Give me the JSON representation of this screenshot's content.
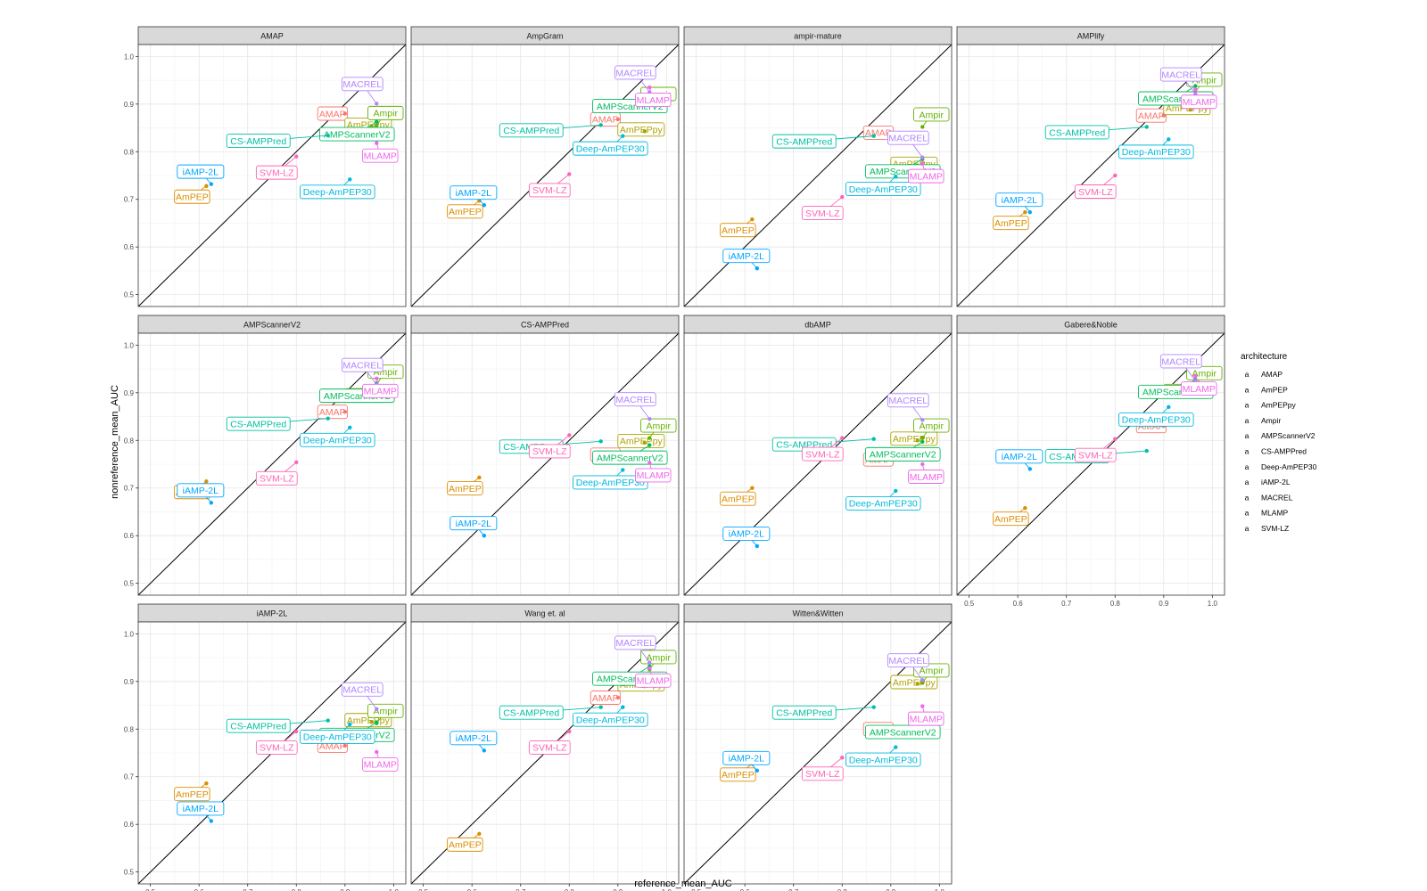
{
  "chart_data": {
    "type": "scatter",
    "xlabel": "reference_mean_AUC",
    "ylabel": "nonreference_mean_AUC",
    "xlim": [
      0.5,
      1.0
    ],
    "ylim": [
      0.5,
      1.0
    ],
    "x_ticks": [
      "0.5",
      "0.6",
      "0.7",
      "0.8",
      "0.9",
      "1.0"
    ],
    "y_ticks": [
      "0.5",
      "0.6",
      "0.7",
      "0.8",
      "0.9",
      "1.0"
    ],
    "reference_line": "y = x",
    "grid": true,
    "legend": {
      "title": "architecture",
      "placement": "right",
      "glyph": "a",
      "items": [
        {
          "name": "AMAP",
          "color": "#F8766D"
        },
        {
          "name": "AmPEP",
          "color": "#DB8E00"
        },
        {
          "name": "AmPEPpy",
          "color": "#AEA200"
        },
        {
          "name": "Ampir",
          "color": "#64B200"
        },
        {
          "name": "AMPScannerV2",
          "color": "#00BD5C"
        },
        {
          "name": "CS-AMPPred",
          "color": "#00C1A7"
        },
        {
          "name": "Deep-AmPEP30",
          "color": "#00BADE"
        },
        {
          "name": "iAMP-2L",
          "color": "#00A6FF"
        },
        {
          "name": "MACREL",
          "color": "#B385FF"
        },
        {
          "name": "MLAMP",
          "color": "#EF67EB"
        },
        {
          "name": "SVM-LZ",
          "color": "#FF63B6"
        }
      ]
    },
    "panels": [
      {
        "title": "AMAP",
        "points": [
          {
            "label": "AMAP",
            "x": 0.9,
            "y": 0.88
          },
          {
            "label": "AmPEP",
            "x": 0.615,
            "y": 0.728
          },
          {
            "label": "AmPEPpy",
            "x": 0.955,
            "y": 0.853
          },
          {
            "label": "Ampir",
            "x": 0.965,
            "y": 0.855
          },
          {
            "label": "AMPScannerV2",
            "x": 0.965,
            "y": 0.863
          },
          {
            "label": "CS-AMPPred",
            "x": 0.865,
            "y": 0.834
          },
          {
            "label": "Deep-AmPEP30",
            "x": 0.91,
            "y": 0.742
          },
          {
            "label": "iAMP-2L",
            "x": 0.625,
            "y": 0.732
          },
          {
            "label": "MACREL",
            "x": 0.965,
            "y": 0.901
          },
          {
            "label": "MLAMP",
            "x": 0.965,
            "y": 0.818
          },
          {
            "label": "SVM-LZ",
            "x": 0.8,
            "y": 0.79
          }
        ]
      },
      {
        "title": "AmpGram",
        "points": [
          {
            "label": "AMAP",
            "x": 0.9,
            "y": 0.868
          },
          {
            "label": "AmPEP",
            "x": 0.615,
            "y": 0.697
          },
          {
            "label": "AmPEPpy",
            "x": 0.955,
            "y": 0.843
          },
          {
            "label": "Ampir",
            "x": 0.965,
            "y": 0.895
          },
          {
            "label": "AMPScannerV2",
            "x": 0.965,
            "y": 0.922
          },
          {
            "label": "CS-AMPPred",
            "x": 0.865,
            "y": 0.856
          },
          {
            "label": "Deep-AmPEP30",
            "x": 0.91,
            "y": 0.833
          },
          {
            "label": "iAMP-2L",
            "x": 0.625,
            "y": 0.688
          },
          {
            "label": "MACREL",
            "x": 0.965,
            "y": 0.925
          },
          {
            "label": "MLAMP",
            "x": 0.965,
            "y": 0.935
          },
          {
            "label": "SVM-LZ",
            "x": 0.8,
            "y": 0.753
          }
        ]
      },
      {
        "title": "ampir-mature",
        "points": [
          {
            "label": "AMAP",
            "x": 0.9,
            "y": 0.84
          },
          {
            "label": "AmPEP",
            "x": 0.615,
            "y": 0.658
          },
          {
            "label": "AmPEPpy",
            "x": 0.955,
            "y": 0.771
          },
          {
            "label": "Ampir",
            "x": 0.965,
            "y": 0.852
          },
          {
            "label": "AMPScannerV2",
            "x": 0.965,
            "y": 0.785
          },
          {
            "label": "CS-AMPPred",
            "x": 0.865,
            "y": 0.833
          },
          {
            "label": "Deep-AmPEP30",
            "x": 0.91,
            "y": 0.748
          },
          {
            "label": "iAMP-2L",
            "x": 0.625,
            "y": 0.555
          },
          {
            "label": "MACREL",
            "x": 0.965,
            "y": 0.788
          },
          {
            "label": "MLAMP",
            "x": 0.965,
            "y": 0.775
          },
          {
            "label": "SVM-LZ",
            "x": 0.8,
            "y": 0.705
          }
        ]
      },
      {
        "title": "AMPlify",
        "points": [
          {
            "label": "AMAP",
            "x": 0.9,
            "y": 0.876
          },
          {
            "label": "AmPEP",
            "x": 0.615,
            "y": 0.673
          },
          {
            "label": "AmPEPpy",
            "x": 0.955,
            "y": 0.888
          },
          {
            "label": "Ampir",
            "x": 0.965,
            "y": 0.925
          },
          {
            "label": "AMPScannerV2",
            "x": 0.965,
            "y": 0.938
          },
          {
            "label": "CS-AMPPred",
            "x": 0.865,
            "y": 0.852
          },
          {
            "label": "Deep-AmPEP30",
            "x": 0.91,
            "y": 0.826
          },
          {
            "label": "iAMP-2L",
            "x": 0.625,
            "y": 0.673
          },
          {
            "label": "MACREL",
            "x": 0.965,
            "y": 0.921
          },
          {
            "label": "MLAMP",
            "x": 0.965,
            "y": 0.931
          },
          {
            "label": "SVM-LZ",
            "x": 0.8,
            "y": 0.75
          }
        ]
      },
      {
        "title": "AMPScannerV2",
        "points": [
          {
            "label": "AMAP",
            "x": 0.9,
            "y": 0.86
          },
          {
            "label": "AmPEP",
            "x": 0.615,
            "y": 0.714
          },
          {
            "label": "AmPEPpy",
            "x": 0.955,
            "y": 0.891
          },
          {
            "label": "Ampir",
            "x": 0.965,
            "y": 0.918
          },
          {
            "label": "AMPScannerV2",
            "x": 0.965,
            "y": 0.92
          },
          {
            "label": "CS-AMPPred",
            "x": 0.865,
            "y": 0.846
          },
          {
            "label": "Deep-AmPEP30",
            "x": 0.91,
            "y": 0.827
          },
          {
            "label": "iAMP-2L",
            "x": 0.625,
            "y": 0.669
          },
          {
            "label": "MACREL",
            "x": 0.965,
            "y": 0.917
          },
          {
            "label": "MLAMP",
            "x": 0.965,
            "y": 0.93
          },
          {
            "label": "SVM-LZ",
            "x": 0.8,
            "y": 0.754
          }
        ]
      },
      {
        "title": "CS-AMPPred",
        "points": [
          {
            "label": "AMAP",
            "x": 0.9,
            "y": 0.77
          },
          {
            "label": "AmPEP",
            "x": 0.615,
            "y": 0.722
          },
          {
            "label": "AmPEPpy",
            "x": 0.955,
            "y": 0.795
          },
          {
            "label": "Ampir",
            "x": 0.965,
            "y": 0.805
          },
          {
            "label": "AMPScannerV2",
            "x": 0.965,
            "y": 0.79
          },
          {
            "label": "CS-AMPPred",
            "x": 0.865,
            "y": 0.798
          },
          {
            "label": "Deep-AmPEP30",
            "x": 0.91,
            "y": 0.738
          },
          {
            "label": "iAMP-2L",
            "x": 0.625,
            "y": 0.6
          },
          {
            "label": "MACREL",
            "x": 0.965,
            "y": 0.845
          },
          {
            "label": "MLAMP",
            "x": 0.965,
            "y": 0.753
          },
          {
            "label": "SVM-LZ",
            "x": 0.8,
            "y": 0.811
          }
        ]
      },
      {
        "title": "dbAMP",
        "points": [
          {
            "label": "AMAP",
            "x": 0.9,
            "y": 0.76
          },
          {
            "label": "AmPEP",
            "x": 0.615,
            "y": 0.7
          },
          {
            "label": "AmPEPpy",
            "x": 0.955,
            "y": 0.8
          },
          {
            "label": "Ampir",
            "x": 0.965,
            "y": 0.805
          },
          {
            "label": "AMPScannerV2",
            "x": 0.965,
            "y": 0.797
          },
          {
            "label": "CS-AMPPred",
            "x": 0.865,
            "y": 0.803
          },
          {
            "label": "Deep-AmPEP30",
            "x": 0.91,
            "y": 0.694
          },
          {
            "label": "iAMP-2L",
            "x": 0.625,
            "y": 0.578
          },
          {
            "label": "MACREL",
            "x": 0.965,
            "y": 0.843
          },
          {
            "label": "MLAMP",
            "x": 0.965,
            "y": 0.75
          },
          {
            "label": "SVM-LZ",
            "x": 0.8,
            "y": 0.805
          }
        ]
      },
      {
        "title": "Gabere&Noble",
        "points": [
          {
            "label": "AMAP",
            "x": 0.9,
            "y": 0.83
          },
          {
            "label": "AmPEP",
            "x": 0.615,
            "y": 0.658
          },
          {
            "label": "AmPEPpy",
            "x": 0.955,
            "y": 0.9
          },
          {
            "label": "Ampir",
            "x": 0.965,
            "y": 0.915
          },
          {
            "label": "AMPScannerV2",
            "x": 0.965,
            "y": 0.928
          },
          {
            "label": "CS-AMPPred",
            "x": 0.865,
            "y": 0.778
          },
          {
            "label": "Deep-AmPEP30",
            "x": 0.91,
            "y": 0.87
          },
          {
            "label": "iAMP-2L",
            "x": 0.625,
            "y": 0.74
          },
          {
            "label": "MACREL",
            "x": 0.965,
            "y": 0.925
          },
          {
            "label": "MLAMP",
            "x": 0.965,
            "y": 0.935
          },
          {
            "label": "SVM-LZ",
            "x": 0.8,
            "y": 0.803
          }
        ]
      },
      {
        "title": "iAMP-2L",
        "points": [
          {
            "label": "AMAP",
            "x": 0.9,
            "y": 0.765
          },
          {
            "label": "AmPEP",
            "x": 0.615,
            "y": 0.686
          },
          {
            "label": "AmPEPpy",
            "x": 0.955,
            "y": 0.815
          },
          {
            "label": "Ampir",
            "x": 0.965,
            "y": 0.812
          },
          {
            "label": "AMPScannerV2",
            "x": 0.965,
            "y": 0.814
          },
          {
            "label": "CS-AMPPred",
            "x": 0.865,
            "y": 0.818
          },
          {
            "label": "Deep-AmPEP30",
            "x": 0.91,
            "y": 0.81
          },
          {
            "label": "iAMP-2L",
            "x": 0.625,
            "y": 0.607
          },
          {
            "label": "MACREL",
            "x": 0.965,
            "y": 0.842
          },
          {
            "label": "MLAMP",
            "x": 0.965,
            "y": 0.752
          },
          {
            "label": "SVM-LZ",
            "x": 0.8,
            "y": 0.795
          }
        ]
      },
      {
        "title": "Wang et. al",
        "points": [
          {
            "label": "AMAP",
            "x": 0.9,
            "y": 0.866
          },
          {
            "label": "AmPEP",
            "x": 0.615,
            "y": 0.58
          },
          {
            "label": "AmPEPpy",
            "x": 0.955,
            "y": 0.89
          },
          {
            "label": "Ampir",
            "x": 0.965,
            "y": 0.925
          },
          {
            "label": "AMPScannerV2",
            "x": 0.965,
            "y": 0.932
          },
          {
            "label": "CS-AMPPred",
            "x": 0.865,
            "y": 0.846
          },
          {
            "label": "Deep-AmPEP30",
            "x": 0.91,
            "y": 0.846
          },
          {
            "label": "iAMP-2L",
            "x": 0.625,
            "y": 0.755
          },
          {
            "label": "MACREL",
            "x": 0.965,
            "y": 0.94
          },
          {
            "label": "MLAMP",
            "x": 0.965,
            "y": 0.928
          },
          {
            "label": "SVM-LZ",
            "x": 0.8,
            "y": 0.795
          }
        ]
      },
      {
        "title": "Witten&Witten",
        "points": [
          {
            "label": "AMAP",
            "x": 0.9,
            "y": 0.8
          },
          {
            "label": "AmPEP",
            "x": 0.615,
            "y": 0.727
          },
          {
            "label": "AmPEPpy",
            "x": 0.955,
            "y": 0.895
          },
          {
            "label": "Ampir",
            "x": 0.965,
            "y": 0.897
          },
          {
            "label": "AMPScannerV2",
            "x": 0.965,
            "y": 0.82
          },
          {
            "label": "CS-AMPPred",
            "x": 0.865,
            "y": 0.846
          },
          {
            "label": "Deep-AmPEP30",
            "x": 0.91,
            "y": 0.762
          },
          {
            "label": "iAMP-2L",
            "x": 0.625,
            "y": 0.713
          },
          {
            "label": "MACREL",
            "x": 0.965,
            "y": 0.903
          },
          {
            "label": "MLAMP",
            "x": 0.965,
            "y": 0.848
          },
          {
            "label": "SVM-LZ",
            "x": 0.8,
            "y": 0.74
          }
        ]
      }
    ]
  }
}
